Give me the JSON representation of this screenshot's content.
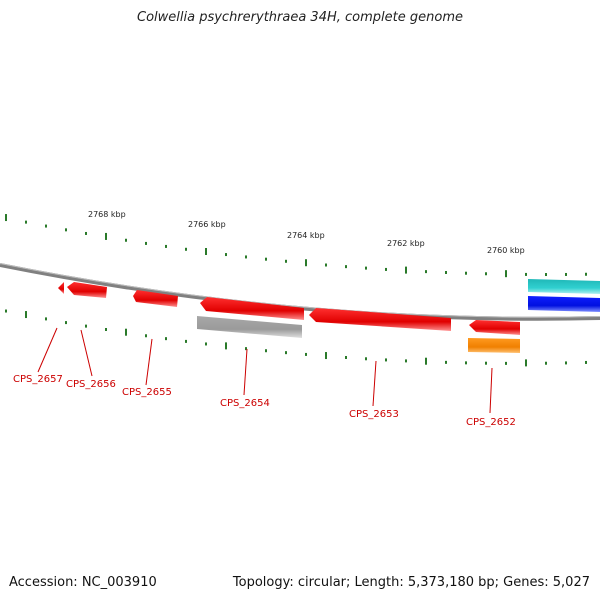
{
  "title": "Colwellia psychrerythraea 34H, complete genome",
  "footer": {
    "accession": "Accession: NC_003910",
    "summary": "Topology: circular; Length: 5,373,180 bp; Genes: 5,027"
  },
  "scale_ticks": [
    {
      "label": "2768 kbp"
    },
    {
      "label": "2766 kbp"
    },
    {
      "label": "2764 kbp"
    },
    {
      "label": "2762 kbp"
    },
    {
      "label": "2760 kbp"
    }
  ],
  "genes": [
    {
      "label": "CPS_2657",
      "color": "#e00000"
    },
    {
      "label": "CPS_2656",
      "color": "#e00000"
    },
    {
      "label": "CPS_2655",
      "color": "#e00000"
    },
    {
      "label": "CPS_2654",
      "color": "#a0a0a0"
    },
    {
      "label": "CPS_2653",
      "color": "#e00000"
    },
    {
      "label": "CPS_2652",
      "color": "#f08000"
    }
  ],
  "colors": {
    "backbone": "#808080",
    "ticks": "#2a7a2a",
    "gene_red": "#e00000",
    "gene_gray": "#a0a0a0",
    "gene_orange": "#f08000",
    "gene_cyan": "#20c0c0",
    "gene_blue": "#0010e0",
    "label": "#cc0000"
  }
}
